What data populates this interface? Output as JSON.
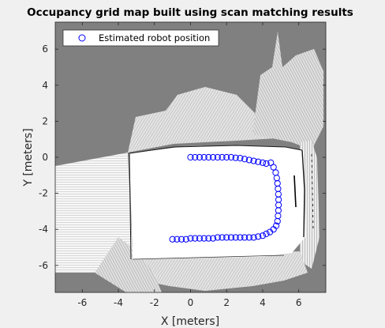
{
  "chart_data": {
    "type": "scatter",
    "title": "Occupancy grid map built using scan matching results",
    "xlabel": "X [meters]",
    "ylabel": "Y [meters]",
    "xlim": [
      -7.5,
      7.5
    ],
    "ylim": [
      -7.5,
      7.5
    ],
    "xticks": [
      -6,
      -4,
      -2,
      0,
      2,
      4,
      6
    ],
    "yticks": [
      -6,
      -4,
      -2,
      0,
      2,
      4,
      6
    ],
    "xtick_labels": [
      "-6",
      "-4",
      "-2",
      "0",
      "2",
      "4",
      "6"
    ],
    "ytick_labels": [
      "-6",
      "-4",
      "-2",
      "0",
      "2",
      "4",
      "6"
    ],
    "grid": false,
    "legend": {
      "position": "top-left",
      "entries": [
        "Estimated robot position"
      ]
    },
    "colors": {
      "marker": "#0000ff",
      "unknown": "#808080",
      "free": "#ffffff",
      "occupied": "#000000"
    },
    "series": [
      {
        "name": "Estimated robot position",
        "marker": "circle",
        "x": [
          0.0,
          0.25,
          0.5,
          0.75,
          1.0,
          1.25,
          1.5,
          1.75,
          2.0,
          2.25,
          2.5,
          2.75,
          3.0,
          3.25,
          3.5,
          3.75,
          4.0,
          4.2,
          4.45,
          4.6,
          4.72,
          4.78,
          4.82,
          4.85,
          4.87,
          4.88,
          4.88,
          4.87,
          4.85,
          4.82,
          4.75,
          4.6,
          4.4,
          4.2,
          4.0,
          3.75,
          3.5,
          3.25,
          3.0,
          2.75,
          2.5,
          2.25,
          2.0,
          1.75,
          1.5,
          1.25,
          1.0,
          0.75,
          0.5,
          0.25,
          0.0,
          -0.25,
          -0.5,
          -0.75,
          -1.0
        ],
        "y": [
          0.0,
          0.0,
          0.0,
          0.0,
          0.0,
          0.0,
          0.0,
          0.0,
          0.0,
          0.0,
          -0.03,
          -0.05,
          -0.1,
          -0.15,
          -0.2,
          -0.25,
          -0.3,
          -0.35,
          -0.3,
          -0.55,
          -0.85,
          -1.15,
          -1.45,
          -1.75,
          -2.05,
          -2.35,
          -2.65,
          -2.95,
          -3.25,
          -3.55,
          -3.8,
          -4.0,
          -4.15,
          -4.25,
          -4.35,
          -4.4,
          -4.45,
          -4.45,
          -4.45,
          -4.45,
          -4.45,
          -4.45,
          -4.45,
          -4.45,
          -4.45,
          -4.5,
          -4.5,
          -4.5,
          -4.5,
          -4.5,
          -4.5,
          -4.55,
          -4.55,
          -4.55,
          -4.55
        ]
      }
    ]
  }
}
